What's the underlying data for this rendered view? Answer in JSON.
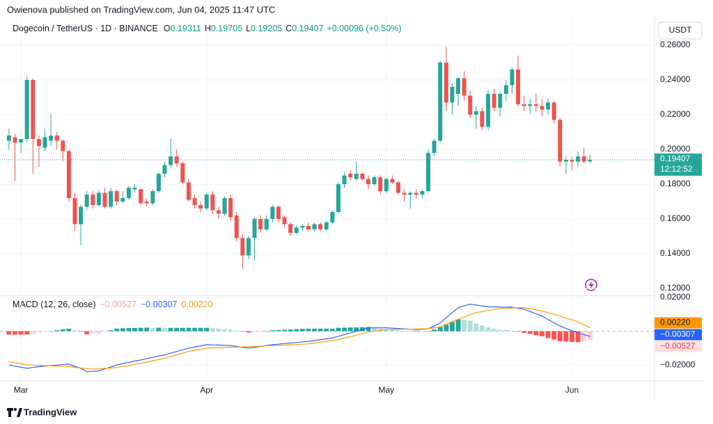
{
  "header": {
    "published": "Owienova published on TradingView.com, Jun 04, 2025 11:47 UTC"
  },
  "footer": {
    "logo": "TradingView"
  },
  "chart_data": [
    {
      "type": "candlestick",
      "title": "Dogecoin / TetherUS · 1D · BINANCE",
      "ohlc_labels": [
        "O",
        "H",
        "L",
        "C"
      ],
      "change": "+0.00096 (+0.50%)",
      "currency": "USDT",
      "countdown": "12:12:52",
      "up_color": "#26a69a",
      "down_color": "#ef5350",
      "grid": true,
      "xlim": [
        -1.5,
        107.2
      ],
      "xticks": [
        {
          "value": 2,
          "label": "Mar"
        },
        {
          "value": 33,
          "label": "Apr"
        },
        {
          "value": 63,
          "label": "May"
        },
        {
          "value": 94,
          "label": "Jun"
        }
      ],
      "ylim": [
        0.1172,
        0.276
      ],
      "yticks": [
        {
          "value": 0.26,
          "label": "0.26000"
        },
        {
          "value": 0.24,
          "label": "0.24000"
        },
        {
          "value": 0.22,
          "label": "0.22000"
        },
        {
          "value": 0.2,
          "label": "0.20000"
        },
        {
          "value": 0.18,
          "label": "0.18000"
        },
        {
          "value": 0.16,
          "label": "0.16000"
        },
        {
          "value": 0.14,
          "label": "0.14000"
        },
        {
          "value": 0.12,
          "label": "0.12000"
        }
      ],
      "ohlc": [
        [
          0.205,
          0.212,
          0.2,
          0.208
        ],
        [
          0.207,
          0.209,
          0.182,
          0.204
        ],
        [
          0.204,
          0.206,
          0.198,
          0.206
        ],
        [
          0.206,
          0.242,
          0.204,
          0.24
        ],
        [
          0.24,
          0.241,
          0.186,
          0.206
        ],
        [
          0.206,
          0.208,
          0.19,
          0.202
        ],
        [
          0.201,
          0.212,
          0.199,
          0.207
        ],
        [
          0.205,
          0.22,
          0.202,
          0.208
        ],
        [
          0.208,
          0.21,
          0.2,
          0.205
        ],
        [
          0.205,
          0.206,
          0.193,
          0.199
        ],
        [
          0.199,
          0.2,
          0.17,
          0.172
        ],
        [
          0.172,
          0.175,
          0.153,
          0.157
        ],
        [
          0.157,
          0.168,
          0.145,
          0.167
        ],
        [
          0.167,
          0.176,
          0.165,
          0.174
        ],
        [
          0.174,
          0.176,
          0.166,
          0.168
        ],
        [
          0.168,
          0.177,
          0.167,
          0.175
        ],
        [
          0.175,
          0.178,
          0.166,
          0.167
        ],
        [
          0.167,
          0.178,
          0.166,
          0.176
        ],
        [
          0.176,
          0.177,
          0.168,
          0.17
        ],
        [
          0.17,
          0.176,
          0.169,
          0.172
        ],
        [
          0.172,
          0.179,
          0.171,
          0.178
        ],
        [
          0.177,
          0.18,
          0.175,
          0.178
        ],
        [
          0.177,
          0.178,
          0.168,
          0.169
        ],
        [
          0.17,
          0.172,
          0.167,
          0.169
        ],
        [
          0.169,
          0.177,
          0.168,
          0.176
        ],
        [
          0.176,
          0.187,
          0.175,
          0.186
        ],
        [
          0.186,
          0.193,
          0.184,
          0.191
        ],
        [
          0.191,
          0.206,
          0.189,
          0.196
        ],
        [
          0.196,
          0.2,
          0.19,
          0.192
        ],
        [
          0.192,
          0.193,
          0.18,
          0.181
        ],
        [
          0.181,
          0.183,
          0.17,
          0.171
        ],
        [
          0.172,
          0.174,
          0.166,
          0.168
        ],
        [
          0.168,
          0.17,
          0.164,
          0.166
        ],
        [
          0.166,
          0.175,
          0.165,
          0.174
        ],
        [
          0.174,
          0.176,
          0.163,
          0.165
        ],
        [
          0.165,
          0.167,
          0.16,
          0.163
        ],
        [
          0.163,
          0.173,
          0.162,
          0.172
        ],
        [
          0.172,
          0.174,
          0.159,
          0.161
        ],
        [
          0.162,
          0.164,
          0.147,
          0.149
        ],
        [
          0.149,
          0.151,
          0.131,
          0.139
        ],
        [
          0.139,
          0.15,
          0.137,
          0.149
        ],
        [
          0.149,
          0.161,
          0.136,
          0.16
        ],
        [
          0.16,
          0.162,
          0.152,
          0.154
        ],
        [
          0.154,
          0.162,
          0.153,
          0.16
        ],
        [
          0.16,
          0.168,
          0.158,
          0.167
        ],
        [
          0.167,
          0.168,
          0.158,
          0.16
        ],
        [
          0.161,
          0.162,
          0.155,
          0.157
        ],
        [
          0.157,
          0.158,
          0.15,
          0.152
        ],
        [
          0.152,
          0.156,
          0.151,
          0.155
        ],
        [
          0.155,
          0.157,
          0.153,
          0.156
        ],
        [
          0.156,
          0.158,
          0.153,
          0.154
        ],
        [
          0.154,
          0.158,
          0.153,
          0.157
        ],
        [
          0.157,
          0.158,
          0.153,
          0.154
        ],
        [
          0.154,
          0.159,
          0.153,
          0.158
        ],
        [
          0.158,
          0.165,
          0.157,
          0.164
        ],
        [
          0.164,
          0.181,
          0.163,
          0.18
        ],
        [
          0.18,
          0.187,
          0.178,
          0.185
        ],
        [
          0.186,
          0.188,
          0.182,
          0.184
        ],
        [
          0.183,
          0.193,
          0.182,
          0.186
        ],
        [
          0.186,
          0.187,
          0.182,
          0.183
        ],
        [
          0.183,
          0.185,
          0.177,
          0.18
        ],
        [
          0.18,
          0.185,
          0.179,
          0.184
        ],
        [
          0.184,
          0.185,
          0.174,
          0.176
        ],
        [
          0.176,
          0.184,
          0.175,
          0.183
        ],
        [
          0.183,
          0.185,
          0.18,
          0.181
        ],
        [
          0.181,
          0.182,
          0.174,
          0.175
        ],
        [
          0.175,
          0.177,
          0.17,
          0.174
        ],
        [
          0.174,
          0.176,
          0.166,
          0.175
        ],
        [
          0.175,
          0.177,
          0.172,
          0.174
        ],
        [
          0.174,
          0.177,
          0.172,
          0.176
        ],
        [
          0.176,
          0.2,
          0.175,
          0.198
        ],
        [
          0.198,
          0.206,
          0.196,
          0.205
        ],
        [
          0.205,
          0.251,
          0.204,
          0.25
        ],
        [
          0.25,
          0.259,
          0.222,
          0.227
        ],
        [
          0.227,
          0.238,
          0.22,
          0.236
        ],
        [
          0.232,
          0.242,
          0.225,
          0.241
        ],
        [
          0.241,
          0.245,
          0.228,
          0.231
        ],
        [
          0.231,
          0.234,
          0.218,
          0.22
        ],
        [
          0.22,
          0.225,
          0.212,
          0.222
        ],
        [
          0.222,
          0.224,
          0.211,
          0.213
        ],
        [
          0.213,
          0.234,
          0.211,
          0.232
        ],
        [
          0.232,
          0.235,
          0.222,
          0.224
        ],
        [
          0.224,
          0.233,
          0.219,
          0.232
        ],
        [
          0.232,
          0.24,
          0.228,
          0.237
        ],
        [
          0.237,
          0.247,
          0.232,
          0.246
        ],
        [
          0.246,
          0.254,
          0.225,
          0.226
        ],
        [
          0.226,
          0.231,
          0.222,
          0.225
        ],
        [
          0.225,
          0.229,
          0.221,
          0.226
        ],
        [
          0.226,
          0.232,
          0.222,
          0.225
        ],
        [
          0.225,
          0.229,
          0.219,
          0.223
        ],
        [
          0.223,
          0.229,
          0.22,
          0.227
        ],
        [
          0.227,
          0.228,
          0.215,
          0.217
        ],
        [
          0.217,
          0.218,
          0.19,
          0.193
        ],
        [
          0.193,
          0.196,
          0.186,
          0.194
        ],
        [
          0.194,
          0.196,
          0.188,
          0.193
        ],
        [
          0.193,
          0.199,
          0.19,
          0.196
        ],
        [
          0.196,
          0.201,
          0.192,
          0.193
        ],
        [
          0.19311,
          0.19705,
          0.19205,
          0.19407
        ]
      ]
    },
    {
      "type": "macd",
      "title": "MACD (12, 26, close)",
      "ylim": [
        -0.0282,
        0.0212
      ],
      "yticks": [
        {
          "value": 0.02,
          "label": "0.02000"
        },
        {
          "value": -0.02,
          "label": "−0.02000"
        }
      ],
      "series": [
        {
          "kind": "histogram",
          "color": "#f5a3a6",
          "bar_colors": [
            "#26a69a",
            "#b2dfdb",
            "#ff5252",
            "#ffcdd2"
          ],
          "label": "−0.00527",
          "values": [
            -0.002,
            -0.002,
            -0.002,
            -0.002,
            -0.0014,
            -0.0007,
            -0.0003,
            0.0002,
            0.0006,
            0.0011,
            0.0015,
            0.0006,
            -0.0002,
            -0.0019,
            -0.0013,
            -0.0012,
            -0.0003,
            0.0006,
            0.0015,
            0.0017,
            0.0018,
            0.0019,
            0.002,
            0.0021,
            0.002,
            0.0021,
            0.002,
            0.002,
            0.002,
            0.002,
            0.002,
            0.002,
            0.002,
            0.002,
            0.0018,
            0.0015,
            0.0012,
            0.001,
            0.0004,
            -0.0002,
            -0.0008,
            -0.0005,
            -0.0001,
            0.0002,
            0.0005,
            0.0007,
            0.0009,
            0.001,
            0.0012,
            0.0014,
            0.0015,
            0.0015,
            0.0015,
            0.0015,
            0.0015,
            0.002,
            0.0021,
            0.0022,
            0.0023,
            0.0024,
            0.0025,
            0.002,
            0.0015,
            0.001,
            0.0008,
            0.0005,
            0.0002,
            0,
            -0.0003,
            -0.0002,
            0,
            0.001,
            0.0025,
            0.004,
            0.0055,
            0.007,
            0.0067,
            0.0063,
            0.0045,
            0.0034,
            0.0022,
            0.0015,
            0.0008,
            0.0007,
            0.0004,
            -0.0003,
            -0.001,
            -0.0016,
            -0.0024,
            -0.003,
            -0.004,
            -0.005,
            -0.006,
            -0.0061,
            -0.0064,
            -0.0065,
            -0.0058,
            -0.00527
          ]
        },
        {
          "kind": "line",
          "color": "#2962ff",
          "label": "−0.00307",
          "values": [
            -0.02,
            -0.0207,
            -0.0213,
            -0.022,
            -0.0215,
            -0.021,
            -0.0207,
            -0.0204,
            -0.0201,
            -0.0198,
            -0.0195,
            -0.0208,
            -0.022,
            -0.024,
            -0.0238,
            -0.0235,
            -0.0223,
            -0.0212,
            -0.02,
            -0.0192,
            -0.0185,
            -0.0177,
            -0.017,
            -0.0162,
            -0.0155,
            -0.0147,
            -0.014,
            -0.013,
            -0.012,
            -0.011,
            -0.01,
            -0.0093,
            -0.0087,
            -0.008,
            -0.0081,
            -0.0082,
            -0.0084,
            -0.0085,
            -0.009,
            -0.0095,
            -0.01,
            -0.0095,
            -0.009,
            -0.0085,
            -0.008,
            -0.0077,
            -0.0073,
            -0.007,
            -0.0067,
            -0.0063,
            -0.006,
            -0.0055,
            -0.005,
            -0.0045,
            -0.004,
            -0.003,
            -0.002,
            -0.001,
            0,
            0.001,
            0.002,
            0.002,
            0.002,
            0.002,
            0.0018,
            0.0016,
            0.0014,
            0.0012,
            0.001,
            0.0012,
            0.0015,
            0.003,
            0.005,
            0.008,
            0.011,
            0.014,
            0.015,
            0.016,
            0.0155,
            0.015,
            0.0145,
            0.0144,
            0.0143,
            0.0143,
            0.0142,
            0.0136,
            0.013,
            0.0117,
            0.0103,
            0.009,
            0.007,
            0.005,
            0.003,
            0.0017,
            0.0003,
            -0.001,
            -0.002,
            -0.00307
          ]
        },
        {
          "kind": "line",
          "color": "#ff9800",
          "label": "0.00220",
          "values": [
            -0.018,
            -0.0187,
            -0.0193,
            -0.02,
            -0.0201,
            -0.0203,
            -0.0204,
            -0.0206,
            -0.0207,
            -0.0209,
            -0.021,
            -0.0214,
            -0.0218,
            -0.0221,
            -0.0225,
            -0.0223,
            -0.022,
            -0.0218,
            -0.0215,
            -0.0209,
            -0.0203,
            -0.0196,
            -0.019,
            -0.0183,
            -0.0175,
            -0.0168,
            -0.016,
            -0.015,
            -0.014,
            -0.013,
            -0.012,
            -0.0113,
            -0.0107,
            -0.01,
            -0.0099,
            -0.0097,
            -0.0096,
            -0.0095,
            -0.0094,
            -0.0093,
            -0.0092,
            -0.009,
            -0.0089,
            -0.0087,
            -0.0085,
            -0.0084,
            -0.0082,
            -0.008,
            -0.0079,
            -0.0077,
            -0.0075,
            -0.007,
            -0.0065,
            -0.006,
            -0.0055,
            -0.005,
            -0.0041,
            -0.0032,
            -0.0023,
            -0.0014,
            -0.0005,
            0,
            0.0005,
            0.001,
            0.001,
            0.0011,
            0.0012,
            0.0012,
            0.0013,
            0.0014,
            0.0015,
            0.002,
            0.0025,
            0.004,
            0.0055,
            0.007,
            0.0083,
            0.0097,
            0.011,
            0.0116,
            0.0123,
            0.0129,
            0.0135,
            0.0136,
            0.0138,
            0.0139,
            0.014,
            0.0133,
            0.0127,
            0.012,
            0.011,
            0.01,
            0.009,
            0.0078,
            0.0067,
            0.0055,
            0.0038,
            0.0022
          ]
        }
      ]
    }
  ]
}
